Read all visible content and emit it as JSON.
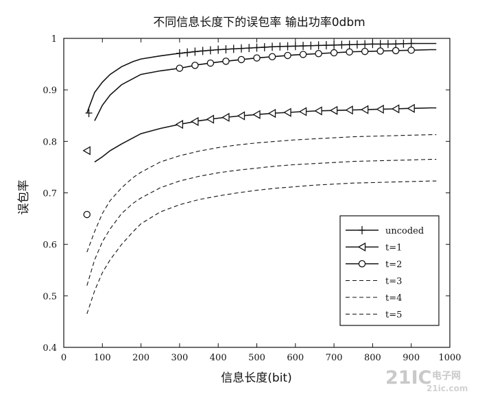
{
  "chart_data": {
    "type": "line",
    "title": "不同信息长度下的误包率 输出功率0dbm",
    "xlabel": "信息长度(bit)",
    "ylabel": "误包率",
    "xlim": [
      0,
      1000
    ],
    "ylim": [
      0.4,
      1.0
    ],
    "xticks": [
      "0",
      "100",
      "200",
      "300",
      "400",
      "500",
      "600",
      "700",
      "800",
      "900",
      "1000"
    ],
    "yticks": [
      "0.4",
      "0.5",
      "0.6",
      "0.7",
      "0.8",
      "0.9",
      "1"
    ],
    "legend_position": "lower-right",
    "series": [
      {
        "name": "uncoded",
        "style": "solid",
        "marker": "plus",
        "x": [
          60,
          80,
          100,
          120,
          150,
          180,
          200,
          250,
          300,
          350,
          400,
          450,
          500,
          550,
          600,
          650,
          700,
          750,
          800,
          850,
          900,
          950,
          965
        ],
        "values": [
          0.855,
          0.895,
          0.915,
          0.93,
          0.945,
          0.955,
          0.96,
          0.966,
          0.971,
          0.975,
          0.978,
          0.98,
          0.982,
          0.984,
          0.985,
          0.986,
          0.987,
          0.988,
          0.989,
          0.989,
          0.99,
          0.99,
          0.99
        ]
      },
      {
        "name": "t=1",
        "style": "solid",
        "marker": "triangle-left",
        "x": [
          60,
          80,
          100,
          120,
          150,
          180,
          200,
          250,
          300,
          350,
          400,
          450,
          500,
          550,
          600,
          650,
          700,
          750,
          800,
          850,
          900,
          950,
          965
        ],
        "values": [
          0.782,
          0.76,
          0.77,
          0.782,
          0.795,
          0.807,
          0.815,
          0.825,
          0.833,
          0.84,
          0.845,
          0.849,
          0.852,
          0.855,
          0.857,
          0.859,
          0.86,
          0.861,
          0.862,
          0.863,
          0.864,
          0.865,
          0.865
        ]
      },
      {
        "name": "t=2",
        "style": "solid",
        "marker": "circle",
        "x": [
          60,
          80,
          100,
          120,
          150,
          180,
          200,
          250,
          300,
          350,
          400,
          450,
          500,
          550,
          600,
          650,
          700,
          750,
          800,
          850,
          900,
          950,
          965
        ],
        "values": [
          0.658,
          0.84,
          0.87,
          0.89,
          0.91,
          0.922,
          0.93,
          0.937,
          0.942,
          0.949,
          0.954,
          0.958,
          0.962,
          0.965,
          0.968,
          0.97,
          0.972,
          0.974,
          0.975,
          0.976,
          0.977,
          0.978,
          0.978
        ]
      },
      {
        "name": "t=3",
        "style": "dashed",
        "marker": "none",
        "x": [
          60,
          80,
          100,
          120,
          150,
          180,
          200,
          250,
          300,
          350,
          400,
          450,
          500,
          550,
          600,
          650,
          700,
          750,
          800,
          850,
          900,
          950,
          965
        ],
        "values": [
          0.585,
          0.625,
          0.66,
          0.685,
          0.71,
          0.73,
          0.74,
          0.76,
          0.772,
          0.781,
          0.788,
          0.793,
          0.797,
          0.8,
          0.803,
          0.805,
          0.807,
          0.809,
          0.81,
          0.811,
          0.812,
          0.813,
          0.813
        ]
      },
      {
        "name": "t=4",
        "style": "dashed",
        "marker": "none",
        "x": [
          60,
          80,
          100,
          120,
          150,
          180,
          200,
          250,
          300,
          350,
          400,
          450,
          500,
          550,
          600,
          650,
          700,
          750,
          800,
          850,
          900,
          950,
          965
        ],
        "values": [
          0.52,
          0.57,
          0.605,
          0.63,
          0.66,
          0.68,
          0.69,
          0.71,
          0.723,
          0.732,
          0.739,
          0.744,
          0.748,
          0.752,
          0.755,
          0.757,
          0.759,
          0.761,
          0.762,
          0.763,
          0.764,
          0.765,
          0.765
        ]
      },
      {
        "name": "t=5",
        "style": "dashed",
        "marker": "none",
        "x": [
          60,
          80,
          100,
          120,
          150,
          180,
          200,
          250,
          300,
          350,
          400,
          450,
          500,
          550,
          600,
          650,
          700,
          750,
          800,
          850,
          900,
          950,
          965
        ],
        "values": [
          0.465,
          0.51,
          0.545,
          0.57,
          0.6,
          0.625,
          0.64,
          0.663,
          0.677,
          0.687,
          0.694,
          0.7,
          0.705,
          0.709,
          0.712,
          0.715,
          0.717,
          0.719,
          0.72,
          0.721,
          0.722,
          0.723,
          0.723
        ]
      }
    ],
    "legend": [
      "uncoded",
      "t=1",
      "t=2",
      "t=3",
      "t=4",
      "t=5"
    ]
  },
  "watermark": {
    "brand": "21IC",
    "site_cn": "电子网",
    "site_url": "21ic.com"
  }
}
